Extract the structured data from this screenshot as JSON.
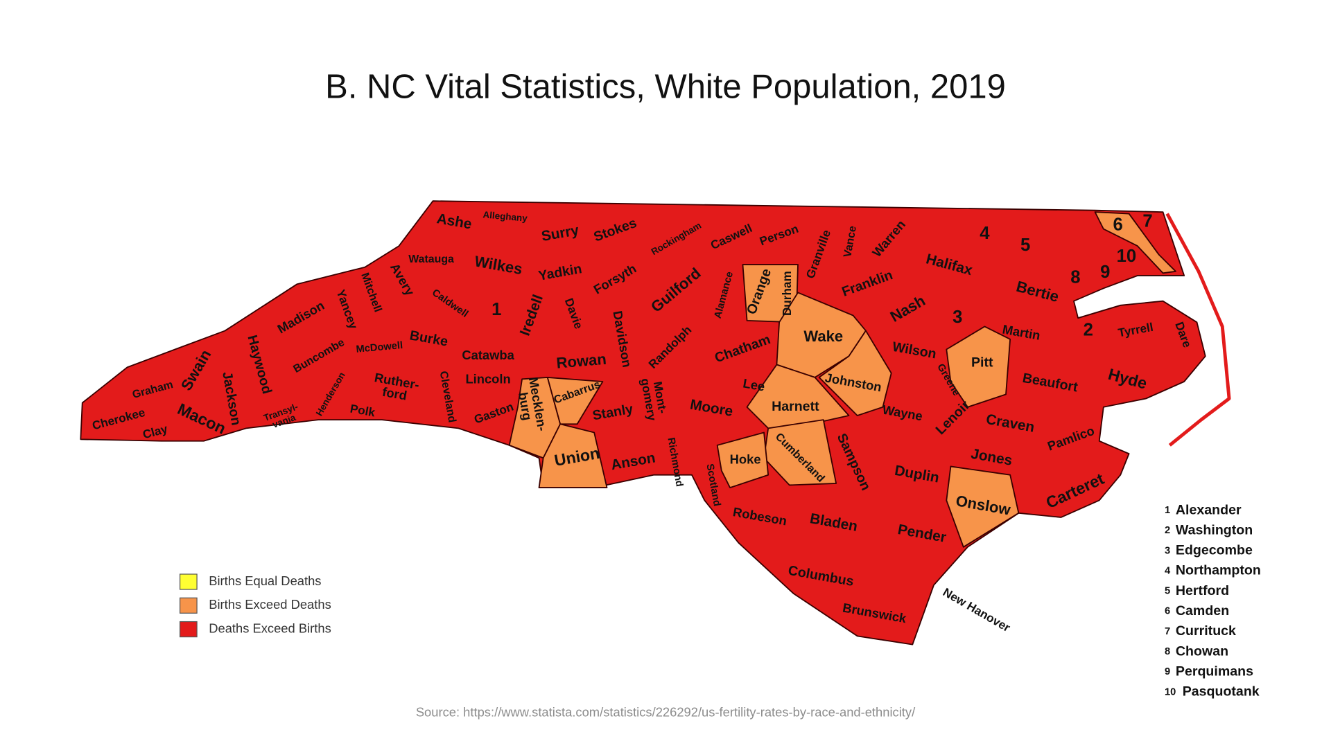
{
  "title": "B. NC Vital Statistics, White Population, 2019",
  "map": {
    "counties": [
      "Ashe",
      "Alleghany",
      "Surry",
      "Stokes",
      "Rockingham",
      "Caswell",
      "Person",
      "Granville",
      "Vance",
      "Warren",
      "Watauga",
      "Wilkes",
      "Yadkin",
      "Forsyth",
      "Guilford",
      "Alamance",
      "Orange",
      "Durham",
      "Franklin",
      "Halifax",
      "Nash",
      "Avery",
      "Mitchell",
      "Caldwell",
      "Iredell",
      "Davie",
      "Davidson",
      "Madison",
      "Yancey",
      "Burke",
      "McDowell",
      "Buncombe",
      "Haywood",
      "Swain",
      "Catawba",
      "Rowan",
      "Randolph",
      "Chatham",
      "Wake",
      "Wilson",
      "Greene",
      "Pitt",
      "Martin",
      "Beaufort",
      "Hyde",
      "Tyrrell",
      "Dare",
      "Bertie",
      "Graham",
      "Jackson",
      "Henderson",
      {
        "lines": [
          "Ruther-",
          "ford"
        ]
      },
      "Lincoln",
      "Cleveland",
      "Gaston",
      "Johnston",
      "Lee",
      "Moore",
      "Stanly",
      "Cabarrus",
      {
        "lines": [
          "Mecklen-",
          "burg"
        ]
      },
      {
        "lines": [
          "Mont-",
          "gomery"
        ]
      },
      "Harnett",
      "Wayne",
      "Lenoir",
      "Craven",
      "Pamlico",
      "Polk",
      {
        "lines": [
          "Transyl-",
          "vania"
        ]
      },
      "Cherokee",
      "Macon",
      "Clay",
      "Union",
      "Anson",
      "Richmond",
      "Scotland",
      "Hoke",
      "Cumberland",
      "Sampson",
      "Duplin",
      "Jones",
      "Carteret",
      "Onslow",
      "Robeson",
      "Bladen",
      "Pender",
      "Columbus",
      "Brunswick",
      "New Hanover"
    ]
  },
  "legend": [
    {
      "label": "Births Equal Deaths",
      "color": "#ffff33"
    },
    {
      "label": "Births Exceed Deaths",
      "color": "#f7944a"
    },
    {
      "label": "Deaths Exceed Births",
      "color": "#e31b1b"
    }
  ],
  "key": [
    {
      "number": 1,
      "name": "Alexander"
    },
    {
      "number": 2,
      "name": "Washington"
    },
    {
      "number": 3,
      "name": "Edgecombe"
    },
    {
      "number": 4,
      "name": "Northampton"
    },
    {
      "number": 5,
      "name": "Hertford"
    },
    {
      "number": 6,
      "name": "Camden"
    },
    {
      "number": 7,
      "name": "Currituck"
    },
    {
      "number": 8,
      "name": "Chowan"
    },
    {
      "number": 9,
      "name": "Perquimans"
    },
    {
      "number": 10,
      "name": "Pasquotank"
    }
  ],
  "source": "Source: https://www.statista.com/statistics/226292/us-fertility-rates-by-race-and-ethnicity/"
}
